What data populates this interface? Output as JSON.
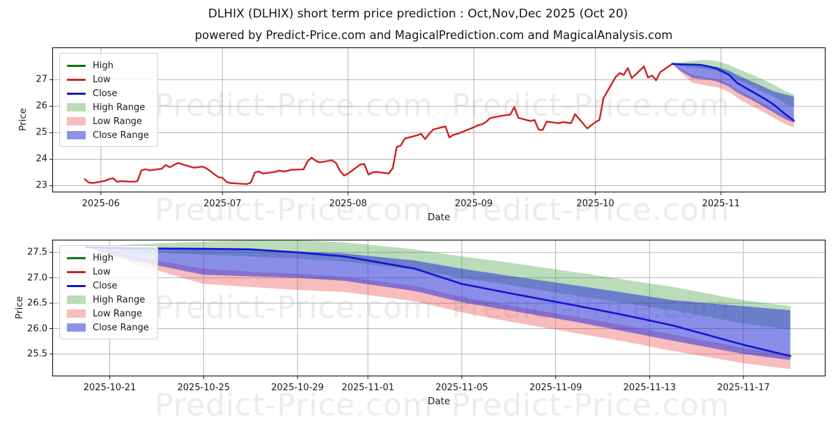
{
  "title": "DLHIX (DLHIX) short term price prediction : Oct,Nov,Dec 2025 (Oct 20)",
  "subtitle": "powered by Predict-Price.com and MagicalPrediction.com and MagicalAnalysis.com",
  "watermark": {
    "text": "Predict-Price.com",
    "color": "#ececec"
  },
  "legend": {
    "items": [
      {
        "label": "High",
        "swatch": "line",
        "color": "#156e15"
      },
      {
        "label": "Low",
        "swatch": "line",
        "color": "#cd2120"
      },
      {
        "label": "Close",
        "swatch": "line",
        "color": "#1313cd"
      },
      {
        "label": "High Range",
        "swatch": "patch",
        "color": "#bcdcb6"
      },
      {
        "label": "Low Range",
        "swatch": "patch",
        "color": "#f8bcbc"
      },
      {
        "label": "Close Range",
        "swatch": "patch",
        "color": "#8c92ea"
      }
    ]
  },
  "chart_data": [
    {
      "name": "price-history-and-forecast",
      "type": "line",
      "xlabel": "Date",
      "ylabel": "Price",
      "x_unit": "day offset from 2025-05-28",
      "start_date": "2025-05-28",
      "xlim": [
        -8,
        182.8
      ],
      "ylim": [
        22.75,
        28.22
      ],
      "grid": true,
      "legend_position": "upper left",
      "x_ticks": [
        {
          "d": 4,
          "label": "2025-06"
        },
        {
          "d": 34,
          "label": "2025-07"
        },
        {
          "d": 65,
          "label": "2025-08"
        },
        {
          "d": 96,
          "label": "2025-09"
        },
        {
          "d": 126,
          "label": "2025-10"
        },
        {
          "d": 157,
          "label": "2025-11"
        }
      ],
      "y_ticks": [
        {
          "v": 23,
          "label": "23"
        },
        {
          "v": 24,
          "label": "24"
        },
        {
          "v": 25,
          "label": "25"
        },
        {
          "v": 26,
          "label": "26"
        },
        {
          "v": 27,
          "label": "27"
        }
      ],
      "bands": [
        {
          "name": "High Range",
          "color": "rgba(45,150,45,0.33)",
          "days": [
            145,
            147,
            150,
            152,
            154,
            156,
            159,
            161,
            163,
            166,
            168,
            170,
            173,
            175
          ],
          "upper": [
            27.6,
            27.66,
            27.71,
            27.74,
            27.74,
            27.7,
            27.56,
            27.42,
            27.3,
            27.1,
            26.96,
            26.82,
            26.56,
            26.44
          ],
          "lower": [
            27.6,
            27.52,
            27.46,
            27.42,
            27.38,
            27.32,
            27.16,
            27.0,
            26.86,
            26.64,
            26.5,
            26.36,
            26.1,
            25.98
          ]
        },
        {
          "name": "Low Range",
          "color": "rgba(235,70,70,0.36)",
          "days": [
            145,
            147,
            150,
            152,
            154,
            156,
            159,
            161,
            163,
            166,
            168,
            170,
            173,
            175
          ],
          "upper": [
            27.6,
            27.42,
            27.18,
            27.12,
            27.08,
            27.02,
            26.84,
            26.62,
            26.46,
            26.22,
            26.06,
            25.88,
            25.62,
            25.48
          ],
          "lower": [
            27.6,
            27.28,
            26.88,
            26.82,
            26.76,
            26.72,
            26.54,
            26.32,
            26.14,
            25.9,
            25.74,
            25.56,
            25.32,
            25.2
          ]
        },
        {
          "name": "Close Range",
          "color": "rgba(40,50,215,0.55)",
          "days": [
            145,
            147,
            150,
            152,
            154,
            156,
            159,
            161,
            163,
            166,
            168,
            170,
            173,
            175
          ],
          "upper": [
            27.6,
            27.58,
            27.57,
            27.56,
            27.52,
            27.48,
            27.34,
            27.18,
            27.04,
            26.84,
            26.7,
            26.56,
            26.44,
            26.36
          ],
          "lower": [
            27.6,
            27.34,
            27.06,
            27.03,
            27.0,
            26.94,
            26.74,
            26.52,
            26.36,
            26.12,
            25.94,
            25.76,
            25.5,
            25.38
          ]
        }
      ],
      "lines": [
        {
          "name": "price history",
          "color": "#cd2120",
          "width": 2.4,
          "days": [
            0,
            1,
            2,
            5,
            6,
            7,
            8,
            9,
            12,
            13,
            14,
            15,
            16,
            19,
            20,
            21,
            23,
            26,
            27,
            28,
            29,
            30,
            33,
            34,
            35,
            36,
            40,
            41,
            42,
            43,
            44,
            47,
            48,
            49,
            50,
            51,
            54,
            55,
            56,
            57,
            58,
            61,
            62,
            63,
            64,
            65,
            68,
            69,
            70,
            71,
            72,
            75,
            76,
            77,
            78,
            79,
            82,
            83,
            84,
            85,
            86,
            89,
            90,
            91,
            92,
            93,
            96,
            97,
            98,
            99,
            100,
            103,
            104,
            105,
            106,
            107,
            110,
            111,
            112,
            113,
            114,
            117,
            118,
            119,
            120,
            121,
            124,
            125,
            126,
            127,
            128,
            131,
            132,
            133,
            134,
            135,
            138,
            139,
            140,
            141,
            142,
            145
          ],
          "values": [
            23.25,
            23.12,
            23.1,
            23.18,
            23.25,
            23.28,
            23.15,
            23.17,
            23.15,
            23.17,
            23.58,
            23.62,
            23.58,
            23.64,
            23.78,
            23.7,
            23.86,
            23.72,
            23.68,
            23.7,
            23.72,
            23.66,
            23.32,
            23.3,
            23.14,
            23.1,
            23.06,
            23.12,
            23.5,
            23.54,
            23.46,
            23.52,
            23.57,
            23.54,
            23.56,
            23.6,
            23.62,
            23.92,
            24.06,
            23.94,
            23.88,
            23.96,
            23.86,
            23.56,
            23.38,
            23.46,
            23.8,
            23.82,
            23.42,
            23.5,
            23.52,
            23.46,
            23.66,
            24.46,
            24.52,
            24.78,
            24.9,
            24.96,
            24.76,
            24.96,
            25.12,
            25.24,
            24.82,
            24.92,
            24.96,
            25.02,
            25.2,
            25.28,
            25.32,
            25.4,
            25.55,
            25.64,
            25.66,
            25.68,
            25.97,
            25.56,
            25.44,
            25.48,
            25.12,
            25.1,
            25.42,
            25.36,
            25.4,
            25.38,
            25.36,
            25.7,
            25.16,
            25.28,
            25.4,
            25.48,
            26.3,
            27.1,
            27.25,
            27.18,
            27.44,
            27.06,
            27.5,
            27.08,
            27.16,
            26.98,
            27.28,
            27.6
          ]
        },
        {
          "name": "close forecast",
          "color": "#1313cd",
          "width": 2.6,
          "days": [
            145,
            147,
            150,
            152,
            154,
            156,
            159,
            161,
            163,
            166,
            168,
            170,
            173,
            175
          ],
          "values": [
            27.6,
            27.58,
            27.57,
            27.56,
            27.5,
            27.42,
            27.18,
            26.88,
            26.7,
            26.44,
            26.26,
            26.06,
            25.68,
            25.46
          ]
        }
      ]
    },
    {
      "name": "forecast-detail",
      "type": "line",
      "xlabel": "Date",
      "ylabel": "Price",
      "x_unit": "day offset from 2025-10-20",
      "start_date": "2025-10-20",
      "forecast_dates": [
        "2025-10-20",
        "2025-10-22",
        "2025-10-25",
        "2025-10-27",
        "2025-10-29",
        "2025-10-31",
        "2025-11-03",
        "2025-11-05",
        "2025-11-07",
        "2025-11-10",
        "2025-11-12",
        "2025-11-14",
        "2025-11-17",
        "2025-11-19"
      ],
      "xlim": [
        -1.45,
        31.5
      ],
      "ylim": [
        25.06,
        27.75
      ],
      "grid": true,
      "legend_position": "upper left",
      "x_ticks": [
        {
          "d": 1,
          "label": "2025-10-21"
        },
        {
          "d": 5,
          "label": "2025-10-25"
        },
        {
          "d": 9,
          "label": "2025-10-29"
        },
        {
          "d": 12,
          "label": "2025-11-01"
        },
        {
          "d": 16,
          "label": "2025-11-05"
        },
        {
          "d": 20,
          "label": "2025-11-09"
        },
        {
          "d": 24,
          "label": "2025-11-13"
        },
        {
          "d": 28,
          "label": "2025-11-17"
        }
      ],
      "y_ticks": [
        {
          "v": 25.5,
          "label": "25.5"
        },
        {
          "v": 26.0,
          "label": "26.0"
        },
        {
          "v": 26.5,
          "label": "26.5"
        },
        {
          "v": 27.0,
          "label": "27.0"
        },
        {
          "v": 27.5,
          "label": "27.5"
        }
      ],
      "bands": [
        {
          "name": "High Range",
          "color": "rgba(45,150,45,0.33)",
          "days": [
            0,
            2,
            5,
            7,
            9,
            11,
            14,
            16,
            18,
            21,
            23,
            25,
            28,
            30
          ],
          "upper": [
            27.6,
            27.66,
            27.71,
            27.74,
            27.74,
            27.7,
            27.56,
            27.42,
            27.3,
            27.1,
            26.96,
            26.82,
            26.56,
            26.44
          ],
          "lower": [
            27.6,
            27.52,
            27.46,
            27.42,
            27.38,
            27.32,
            27.16,
            27.0,
            26.86,
            26.64,
            26.5,
            26.36,
            26.1,
            25.98
          ]
        },
        {
          "name": "Low Range",
          "color": "rgba(235,70,70,0.36)",
          "days": [
            0,
            2,
            5,
            7,
            9,
            11,
            14,
            16,
            18,
            21,
            23,
            25,
            28,
            30
          ],
          "upper": [
            27.6,
            27.42,
            27.18,
            27.12,
            27.08,
            27.02,
            26.84,
            26.62,
            26.46,
            26.22,
            26.06,
            25.88,
            25.62,
            25.48
          ],
          "lower": [
            27.6,
            27.28,
            26.88,
            26.82,
            26.76,
            26.72,
            26.54,
            26.32,
            26.14,
            25.9,
            25.74,
            25.56,
            25.32,
            25.2
          ]
        },
        {
          "name": "Close Range",
          "color": "rgba(40,50,215,0.55)",
          "days": [
            0,
            2,
            5,
            7,
            9,
            11,
            14,
            16,
            18,
            21,
            23,
            25,
            28,
            30
          ],
          "upper": [
            27.6,
            27.58,
            27.57,
            27.56,
            27.52,
            27.48,
            27.34,
            27.18,
            27.04,
            26.84,
            26.7,
            26.56,
            26.44,
            26.36
          ],
          "lower": [
            27.6,
            27.34,
            27.06,
            27.03,
            27.0,
            26.94,
            26.74,
            26.52,
            26.36,
            26.12,
            25.94,
            25.76,
            25.5,
            25.38
          ]
        }
      ],
      "lines": [
        {
          "name": "close forecast",
          "color": "#1313cd",
          "width": 2.6,
          "days": [
            0,
            2,
            5,
            7,
            9,
            11,
            14,
            16,
            18,
            21,
            23,
            25,
            28,
            30
          ],
          "values": [
            27.6,
            27.58,
            27.57,
            27.56,
            27.5,
            27.42,
            27.18,
            26.88,
            26.7,
            26.44,
            26.26,
            26.06,
            25.68,
            25.46
          ]
        }
      ]
    }
  ]
}
